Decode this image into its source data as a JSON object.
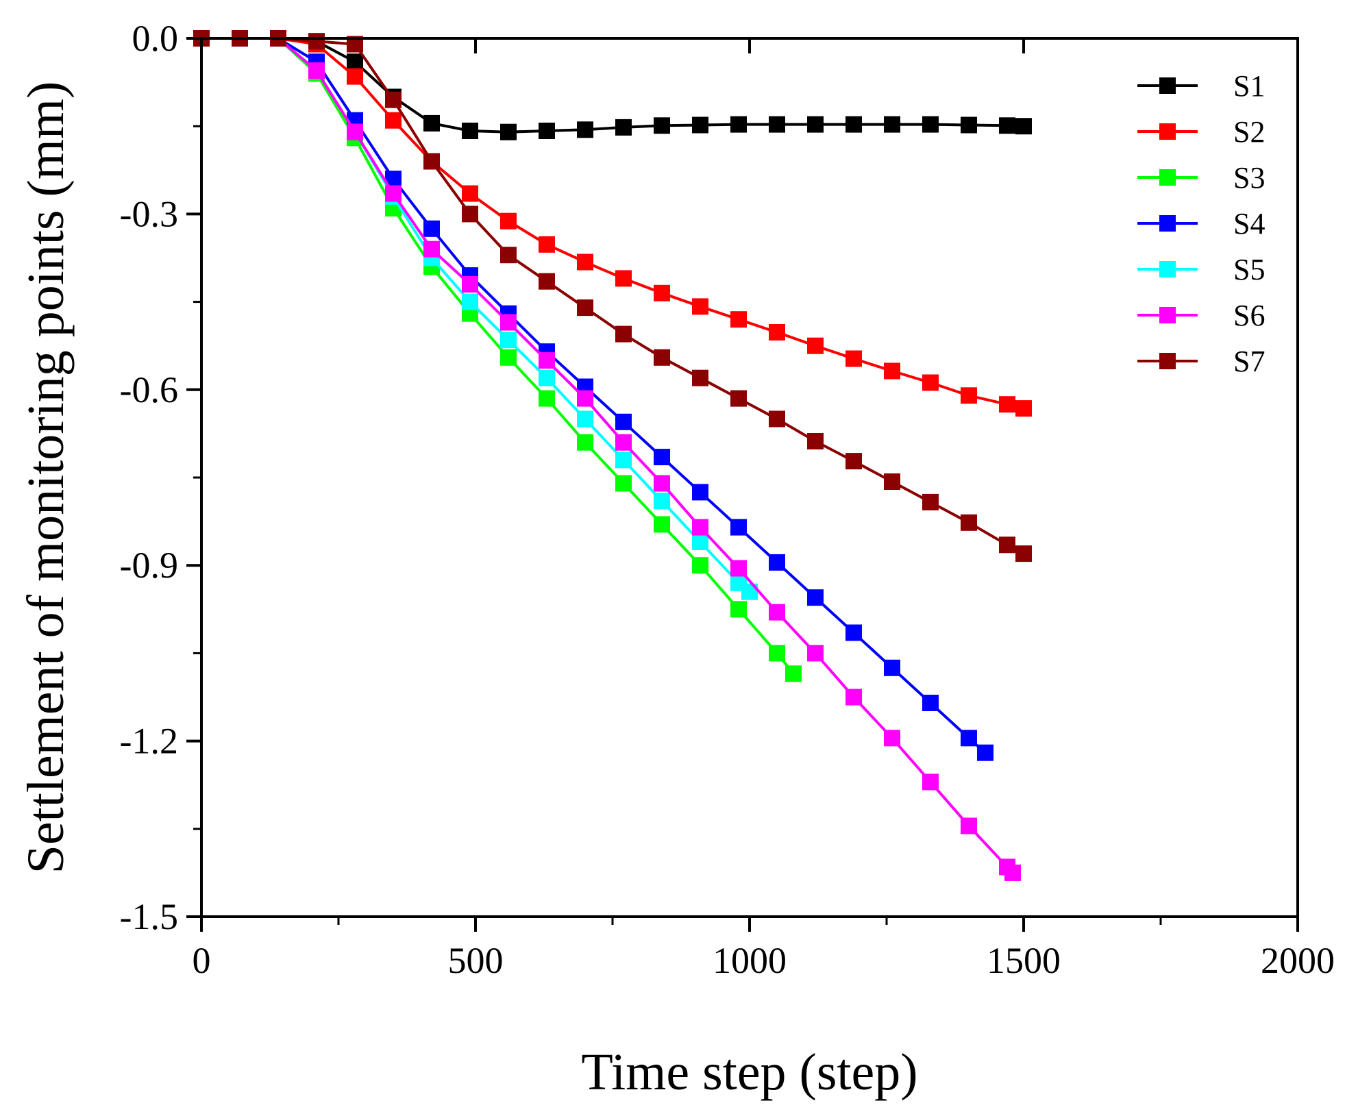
{
  "chart_data": {
    "type": "line",
    "title": "",
    "xlabel": "Time step (step)",
    "ylabel": "Settlement of monitoring points (mm)",
    "xlim": [
      0,
      2000
    ],
    "ylim": [
      -1.5,
      0.0
    ],
    "xticks": [
      0,
      500,
      1000,
      1500,
      2000
    ],
    "xtick_labels": [
      "0",
      "500",
      "1000",
      "1500",
      "2000"
    ],
    "yticks": [
      0.0,
      -0.3,
      -0.6,
      -0.9,
      -1.2,
      -1.5
    ],
    "ytick_labels": [
      "0.0",
      "-0.3",
      "-0.6",
      "-0.9",
      "-1.2",
      "-1.5"
    ],
    "grid": false,
    "legend_position": "top-right",
    "marker": "square",
    "series": [
      {
        "name": "S1",
        "color": "#000000",
        "x": [
          0,
          70,
          140,
          210,
          280,
          350,
          420,
          490,
          560,
          630,
          700,
          770,
          840,
          910,
          980,
          1050,
          1120,
          1190,
          1260,
          1330,
          1400,
          1470,
          1500
        ],
        "y": [
          0,
          0,
          0,
          -0.005,
          -0.04,
          -0.1,
          -0.145,
          -0.158,
          -0.16,
          -0.158,
          -0.156,
          -0.152,
          -0.149,
          -0.148,
          -0.147,
          -0.147,
          -0.147,
          -0.147,
          -0.147,
          -0.147,
          -0.148,
          -0.149,
          -0.15
        ]
      },
      {
        "name": "S2",
        "color": "#ff0000",
        "x": [
          0,
          70,
          140,
          210,
          280,
          350,
          420,
          490,
          560,
          630,
          700,
          770,
          840,
          910,
          980,
          1050,
          1120,
          1190,
          1260,
          1330,
          1400,
          1470,
          1500
        ],
        "y": [
          0,
          0,
          0,
          -0.01,
          -0.065,
          -0.14,
          -0.21,
          -0.265,
          -0.312,
          -0.352,
          -0.382,
          -0.41,
          -0.435,
          -0.458,
          -0.48,
          -0.502,
          -0.525,
          -0.547,
          -0.568,
          -0.588,
          -0.61,
          -0.625,
          -0.632
        ]
      },
      {
        "name": "S3",
        "color": "#00ff00",
        "x": [
          0,
          70,
          140,
          210,
          280,
          350,
          420,
          490,
          560,
          630,
          700,
          770,
          840,
          910,
          980,
          1050,
          1080
        ],
        "y": [
          0,
          0,
          0,
          -0.06,
          -0.17,
          -0.29,
          -0.39,
          -0.47,
          -0.545,
          -0.615,
          -0.69,
          -0.76,
          -0.83,
          -0.9,
          -0.975,
          -1.05,
          -1.085
        ]
      },
      {
        "name": "S4",
        "color": "#0000ff",
        "x": [
          0,
          70,
          140,
          210,
          280,
          350,
          420,
          490,
          560,
          630,
          700,
          770,
          840,
          910,
          980,
          1050,
          1120,
          1190,
          1260,
          1330,
          1400,
          1430
        ],
        "y": [
          0,
          0,
          0,
          -0.04,
          -0.14,
          -0.24,
          -0.325,
          -0.405,
          -0.47,
          -0.535,
          -0.595,
          -0.655,
          -0.715,
          -0.775,
          -0.835,
          -0.895,
          -0.955,
          -1.015,
          -1.075,
          -1.135,
          -1.195,
          -1.22
        ]
      },
      {
        "name": "S5",
        "color": "#00ffff",
        "x": [
          0,
          70,
          140,
          210,
          280,
          350,
          420,
          490,
          560,
          630,
          700,
          770,
          840,
          910,
          980,
          1000
        ],
        "y": [
          0,
          0,
          0,
          -0.055,
          -0.16,
          -0.27,
          -0.375,
          -0.45,
          -0.515,
          -0.58,
          -0.65,
          -0.72,
          -0.79,
          -0.86,
          -0.93,
          -0.945
        ]
      },
      {
        "name": "S6",
        "color": "#ff00ff",
        "x": [
          0,
          70,
          140,
          210,
          280,
          350,
          420,
          490,
          560,
          630,
          700,
          770,
          840,
          910,
          980,
          1050,
          1120,
          1190,
          1260,
          1330,
          1400,
          1470,
          1480
        ],
        "y": [
          0,
          0,
          0,
          -0.055,
          -0.16,
          -0.265,
          -0.36,
          -0.42,
          -0.485,
          -0.55,
          -0.615,
          -0.69,
          -0.76,
          -0.835,
          -0.905,
          -0.98,
          -1.05,
          -1.125,
          -1.195,
          -1.27,
          -1.345,
          -1.415,
          -1.425
        ]
      },
      {
        "name": "S7",
        "color": "#8b0000",
        "x": [
          0,
          70,
          140,
          210,
          280,
          350,
          420,
          490,
          560,
          630,
          700,
          770,
          840,
          910,
          980,
          1050,
          1120,
          1190,
          1260,
          1330,
          1400,
          1470,
          1500
        ],
        "y": [
          0,
          0,
          0,
          -0.005,
          -0.01,
          -0.105,
          -0.21,
          -0.3,
          -0.37,
          -0.415,
          -0.46,
          -0.505,
          -0.545,
          -0.58,
          -0.615,
          -0.65,
          -0.688,
          -0.722,
          -0.757,
          -0.792,
          -0.827,
          -0.865,
          -0.88
        ]
      }
    ]
  }
}
